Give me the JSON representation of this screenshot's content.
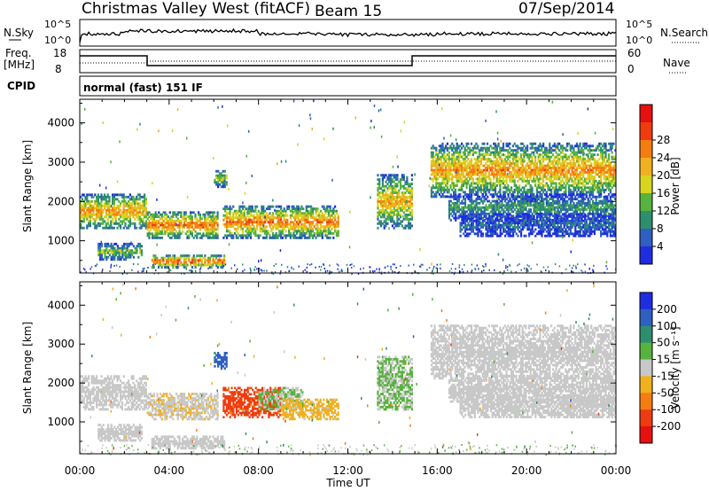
{
  "header": {
    "station": "Christmas Valley West (fitACF)",
    "beam": "Beam 15",
    "date": "07/Sep/2014"
  },
  "top_panels": {
    "nsky_label": "N.Sky",
    "nsky_ticks": [
      "10^5",
      "10^0"
    ],
    "nsearch_label": "N.Search",
    "nsearch_ticks": [
      "10^5",
      "10^0"
    ],
    "freq_label": "Freq.",
    "freq_unit": "[MHz]",
    "freq_ticks": [
      "18",
      "8"
    ],
    "nave_label": "Nave",
    "nave_ticks": [
      "60",
      "0"
    ],
    "cpid_label": "CPID",
    "cpid_text": "normal (fast) 151 IF"
  },
  "chart_data": [
    {
      "type": "heatmap",
      "name": "power",
      "ylabel": "Slant Range [km]",
      "xlabel": "Time UT",
      "xlim": [
        "00:00",
        "24:00"
      ],
      "ylim": [
        180,
        4600
      ],
      "yticks": [
        1000,
        2000,
        3000,
        4000
      ],
      "xticks": [
        "00:00",
        "04:00",
        "08:00",
        "12:00",
        "16:00",
        "20:00",
        "00:00"
      ],
      "colorbar": {
        "label": "Power [dB]",
        "range": [
          0,
          32
        ],
        "ticks": [
          "4",
          "8",
          "12",
          "16",
          "20",
          "24",
          "28"
        ],
        "colors": [
          "#1f2de0",
          "#2f5fbf",
          "#2e8f6f",
          "#57b23e",
          "#d8d520",
          "#f0b020",
          "#f57c10",
          "#ee3c10",
          "#e61010"
        ]
      },
      "regions": [
        {
          "t0": 0.0,
          "t1": 3.0,
          "r0": 1300,
          "r1": 2200,
          "level": 22
        },
        {
          "t0": 0.8,
          "t1": 2.8,
          "r0": 500,
          "r1": 950,
          "level": 14
        },
        {
          "t0": 3.0,
          "t1": 6.2,
          "r0": 1050,
          "r1": 1750,
          "level": 24
        },
        {
          "t0": 3.2,
          "t1": 6.5,
          "r0": 300,
          "r1": 650,
          "level": 26
        },
        {
          "t0": 6.0,
          "t1": 6.6,
          "r0": 2350,
          "r1": 2800,
          "level": 16
        },
        {
          "t0": 6.4,
          "t1": 11.6,
          "r0": 1050,
          "r1": 1900,
          "level": 24
        },
        {
          "t0": 13.3,
          "t1": 14.9,
          "r0": 1300,
          "r1": 2700,
          "level": 20
        },
        {
          "t0": 15.7,
          "t1": 24.0,
          "r0": 2100,
          "r1": 3500,
          "level": 22
        },
        {
          "t0": 16.5,
          "t1": 24.0,
          "r0": 1500,
          "r1": 2200,
          "level": 10
        },
        {
          "t0": 17.0,
          "t1": 24.0,
          "r0": 1100,
          "r1": 1700,
          "level": 6
        }
      ]
    },
    {
      "type": "heatmap",
      "name": "velocity",
      "ylabel": "Slant Range [km]",
      "xlabel": "Time UT",
      "xlim": [
        "00:00",
        "24:00"
      ],
      "ylim": [
        180,
        4600
      ],
      "yticks": [
        1000,
        2000,
        3000,
        4000
      ],
      "xticks": [
        "00:00",
        "04:00",
        "08:00",
        "12:00",
        "16:00",
        "20:00",
        "00:00"
      ],
      "colorbar": {
        "label": "Velocity [m s⁻¹]",
        "range": [
          -250,
          250
        ],
        "ticks": [
          "200",
          "100",
          "50",
          "15",
          "-15",
          "-50",
          "-100",
          "-200"
        ],
        "colors": [
          "#1f2de0",
          "#2f5fbf",
          "#2e8f6f",
          "#57b23e",
          "#c8c8c8",
          "#f0b020",
          "#f57c10",
          "#ee3c10",
          "#e61010"
        ]
      },
      "regions": [
        {
          "t0": 0.0,
          "t1": 3.0,
          "r0": 1300,
          "r1": 2200,
          "level": 0
        },
        {
          "t0": 0.8,
          "t1": 2.8,
          "r0": 500,
          "r1": 950,
          "level": 0
        },
        {
          "t0": 3.0,
          "t1": 6.2,
          "r0": 1050,
          "r1": 1750,
          "level": -20
        },
        {
          "t0": 3.2,
          "t1": 6.5,
          "r0": 300,
          "r1": 650,
          "level": 0
        },
        {
          "t0": 6.0,
          "t1": 6.6,
          "r0": 2350,
          "r1": 2800,
          "level": 150
        },
        {
          "t0": 6.4,
          "t1": 9.0,
          "r0": 1100,
          "r1": 1900,
          "level": -150
        },
        {
          "t0": 8.0,
          "t1": 10.0,
          "r0": 1300,
          "r1": 1900,
          "level": 30
        },
        {
          "t0": 9.0,
          "t1": 11.6,
          "r0": 1050,
          "r1": 1600,
          "level": -40
        },
        {
          "t0": 13.3,
          "t1": 14.9,
          "r0": 1300,
          "r1": 2700,
          "level": 30
        },
        {
          "t0": 15.7,
          "t1": 24.0,
          "r0": 2100,
          "r1": 3500,
          "level": 0
        },
        {
          "t0": 16.5,
          "t1": 24.0,
          "r0": 1500,
          "r1": 2200,
          "level": 0
        },
        {
          "t0": 17.0,
          "t1": 24.0,
          "r0": 1100,
          "r1": 1700,
          "level": 0
        }
      ]
    }
  ]
}
